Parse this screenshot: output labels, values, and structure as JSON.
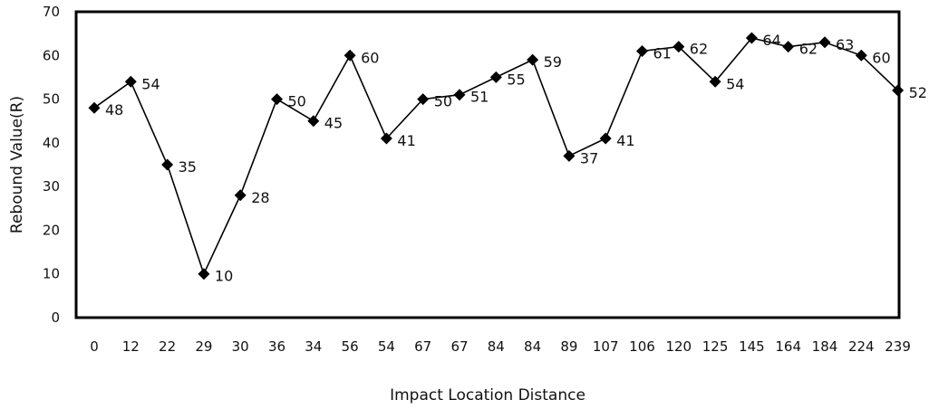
{
  "chart_data": {
    "type": "line",
    "title": "",
    "xlabel": "Impact Location Distance",
    "ylabel": "Rebound Value(R)",
    "categories": [
      "0",
      "12",
      "22",
      "29",
      "30",
      "36",
      "34",
      "56",
      "54",
      "67",
      "67",
      "84",
      "84",
      "89",
      "107",
      "106",
      "120",
      "125",
      "145",
      "164",
      "184",
      "224",
      "239"
    ],
    "values": [
      48,
      54,
      35,
      10,
      28,
      50,
      45,
      60,
      41,
      50,
      51,
      55,
      59,
      37,
      41,
      61,
      62,
      54,
      64,
      62,
      63,
      60,
      52
    ],
    "data_labels": [
      "48",
      "54",
      "35",
      "10",
      "28",
      "50",
      "45",
      "60",
      "41",
      "50",
      "51",
      "55",
      "59",
      "37",
      "41",
      "61",
      "62",
      "54",
      "64",
      "62",
      "63",
      "60",
      "52"
    ],
    "yticks": [
      "0",
      "10",
      "20",
      "30",
      "40",
      "50",
      "60",
      "70"
    ],
    "ylim": [
      0,
      70
    ],
    "grid": false,
    "legend": "none",
    "marker": "diamond",
    "line_color": "#000000"
  }
}
